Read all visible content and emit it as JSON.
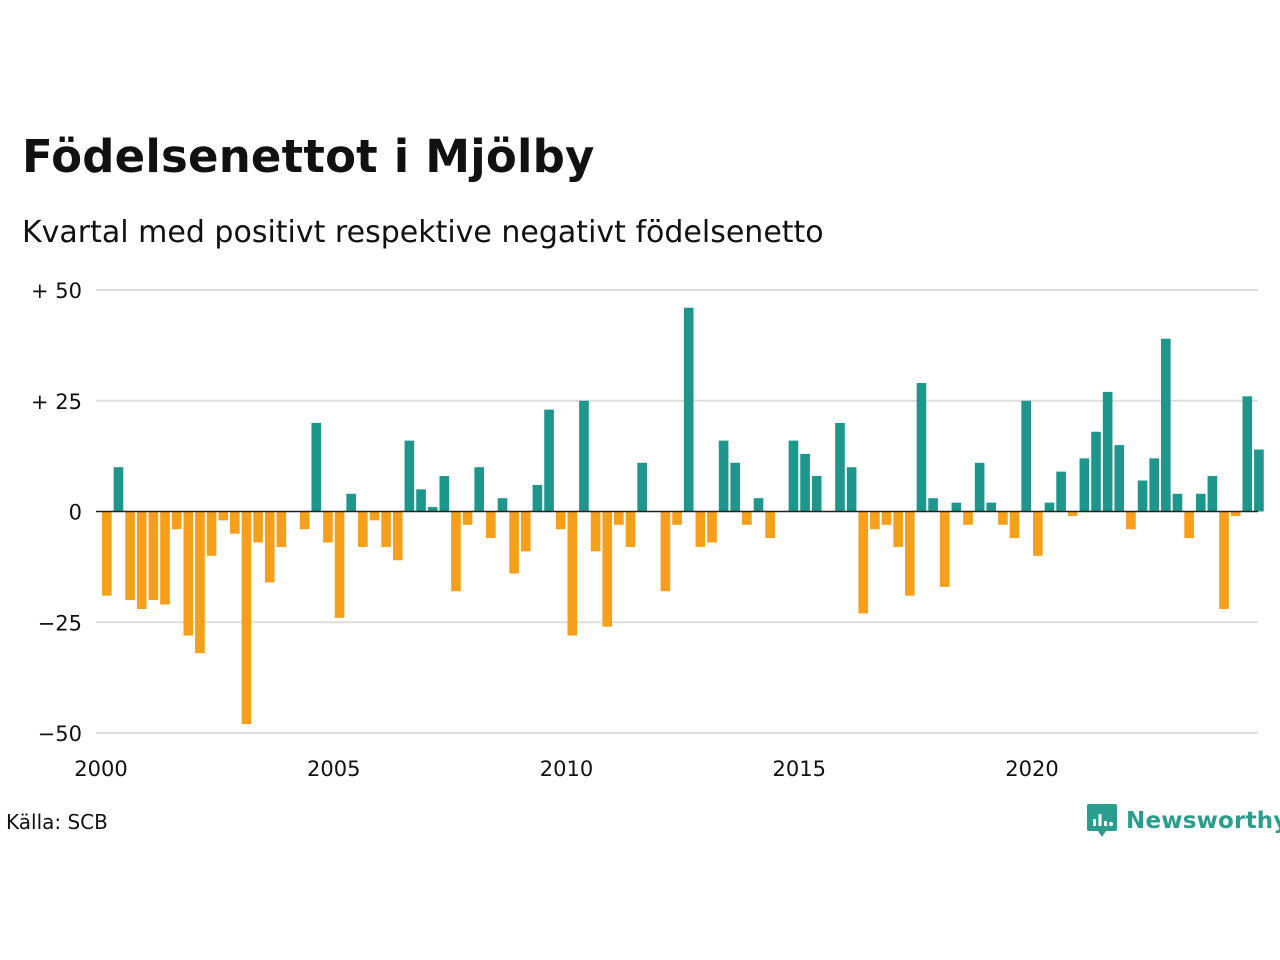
{
  "header": {
    "title": "Födelsenettot i Mjölby",
    "subtitle": "Kvartal med positivt respektive negativt födelsenetto"
  },
  "footer": {
    "source": "Källa: SCB",
    "brand": "Newsworthy",
    "brand_icon": "newsworthy-logo-icon"
  },
  "colors": {
    "positive": "#1f968b",
    "negative": "#f59f1b",
    "grid": "#dddddd",
    "zero_line": "#222222",
    "brand": "#2a9d8f"
  },
  "chart_data": {
    "type": "bar",
    "title": "Födelsenettot i Mjölby",
    "subtitle": "Kvartal med positivt respektive negativt födelsenetto",
    "xlabel": "",
    "ylabel": "",
    "ylim": [
      -50,
      50
    ],
    "y_ticks": [
      {
        "value": 50,
        "label": "+ 50"
      },
      {
        "value": 25,
        "label": "+ 25"
      },
      {
        "value": 0,
        "label": "0"
      },
      {
        "value": -25,
        "label": "−25"
      },
      {
        "value": -50,
        "label": "−50"
      }
    ],
    "x_ticks": [
      "2000",
      "2005",
      "2010",
      "2015",
      "2020"
    ],
    "start_year": 2000,
    "grid": true,
    "legend": "none",
    "periods": [
      "2000 Q1",
      "2000 Q2",
      "2000 Q3",
      "2000 Q4",
      "2001 Q1",
      "2001 Q2",
      "2001 Q3",
      "2001 Q4",
      "2002 Q1",
      "2002 Q2",
      "2002 Q3",
      "2002 Q4",
      "2003 Q1",
      "2003 Q2",
      "2003 Q3",
      "2003 Q4",
      "2004 Q1",
      "2004 Q2",
      "2004 Q3",
      "2004 Q4",
      "2005 Q1",
      "2005 Q2",
      "2005 Q3",
      "2005 Q4",
      "2006 Q1",
      "2006 Q2",
      "2006 Q3",
      "2006 Q4",
      "2007 Q1",
      "2007 Q2",
      "2007 Q3",
      "2007 Q4",
      "2008 Q1",
      "2008 Q2",
      "2008 Q3",
      "2008 Q4",
      "2009 Q1",
      "2009 Q2",
      "2009 Q3",
      "2009 Q4",
      "2010 Q1",
      "2010 Q2",
      "2010 Q3",
      "2010 Q4",
      "2011 Q1",
      "2011 Q2",
      "2011 Q3",
      "2011 Q4",
      "2012 Q1",
      "2012 Q2",
      "2012 Q3",
      "2012 Q4",
      "2013 Q1",
      "2013 Q2",
      "2013 Q3",
      "2013 Q4",
      "2014 Q1",
      "2014 Q2",
      "2014 Q3",
      "2014 Q4",
      "2015 Q1",
      "2015 Q2",
      "2015 Q3",
      "2015 Q4",
      "2016 Q1",
      "2016 Q2",
      "2016 Q3",
      "2016 Q4",
      "2017 Q1",
      "2017 Q2",
      "2017 Q3",
      "2017 Q4",
      "2018 Q1",
      "2018 Q2",
      "2018 Q3",
      "2018 Q4",
      "2019 Q1",
      "2019 Q2",
      "2019 Q3",
      "2019 Q4",
      "2020 Q1",
      "2020 Q2",
      "2020 Q3",
      "2020 Q4",
      "2021 Q1",
      "2021 Q2",
      "2021 Q3",
      "2021 Q4",
      "2022 Q1",
      "2022 Q2",
      "2022 Q3",
      "2022 Q4",
      "2023 Q1",
      "2023 Q2",
      "2023 Q3",
      "2023 Q4",
      "2024 Q1",
      "2024 Q2",
      "2024 Q3",
      "2024 Q4",
      "2025 Q1",
      "2025 Q2",
      "2025 Q3"
    ],
    "values": [
      -19,
      10,
      -20,
      -22,
      -20,
      -21,
      -4,
      -28,
      -32,
      -10,
      -2,
      -5,
      -48,
      -7,
      -16,
      -8,
      0,
      -4,
      20,
      -7,
      -24,
      4,
      -8,
      -2,
      -8,
      -11,
      16,
      5,
      1,
      8,
      -18,
      -3,
      10,
      -6,
      3,
      -14,
      -9,
      6,
      23,
      -4,
      -28,
      25,
      -9,
      -26,
      -3,
      -8,
      11,
      0,
      -18,
      -3,
      46,
      -8,
      -7,
      16,
      11,
      -3,
      3,
      -6,
      0,
      16,
      13,
      8,
      0,
      20,
      10,
      -23,
      -4,
      -3,
      -8,
      -19,
      29,
      3,
      -17,
      2,
      -3,
      11,
      2,
      -3,
      -6,
      25,
      -10,
      2,
      9,
      -1,
      12,
      18,
      27,
      15,
      -4,
      7,
      12,
      39,
      4,
      -6,
      4,
      8,
      -22,
      -1,
      26,
      14,
      0,
      0,
      0
    ]
  }
}
